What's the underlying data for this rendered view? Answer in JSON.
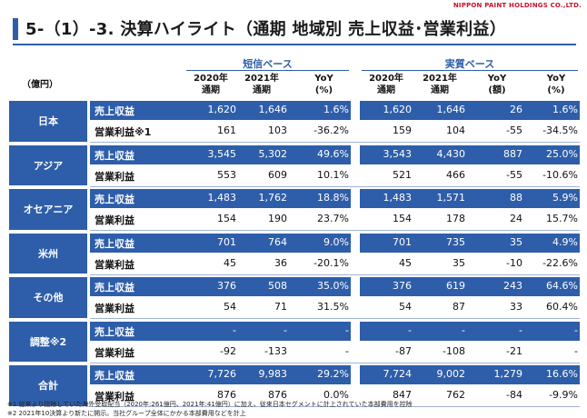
{
  "header": {
    "brand": "NIPPON PAINT HOLDINGS CO.,LTD.",
    "title": "5-（1）-3. 決算ハイライト（通期 地域別 売上収益･営業利益）"
  },
  "table": {
    "unit": "（億円）",
    "sections": [
      {
        "label": "短信ベース"
      },
      {
        "label": "実質ベース"
      }
    ],
    "columns": [
      {
        "l1": "2020年",
        "l2": "通期"
      },
      {
        "l1": "2021年",
        "l2": "通期"
      },
      {
        "l1": "YoY",
        "l2": "(%)"
      },
      {
        "l1": "2020年",
        "l2": "通期"
      },
      {
        "l1": "2021年",
        "l2": "通期"
      },
      {
        "l1": "YoY",
        "l2": "(額)"
      },
      {
        "l1": "YoY",
        "l2": "(%)"
      }
    ],
    "regions": [
      {
        "name": "日本",
        "rows": [
          {
            "label": "売上収益",
            "values": [
              "1,620",
              "1,646",
              "1.6%",
              "1,620",
              "1,646",
              "26",
              "1.6%"
            ]
          },
          {
            "label": "営業利益※1",
            "values": [
              "161",
              "103",
              "-36.2%",
              "159",
              "104",
              "-55",
              "-34.5%"
            ]
          }
        ]
      },
      {
        "name": "アジア",
        "rows": [
          {
            "label": "売上収益",
            "values": [
              "3,545",
              "5,302",
              "49.6%",
              "3,543",
              "4,430",
              "887",
              "25.0%"
            ]
          },
          {
            "label": "営業利益",
            "values": [
              "553",
              "609",
              "10.1%",
              "521",
              "466",
              "-55",
              "-10.6%"
            ]
          }
        ]
      },
      {
        "name": "オセアニア",
        "rows": [
          {
            "label": "売上収益",
            "values": [
              "1,483",
              "1,762",
              "18.8%",
              "1,483",
              "1,571",
              "88",
              "5.9%"
            ]
          },
          {
            "label": "営業利益",
            "values": [
              "154",
              "190",
              "23.7%",
              "154",
              "178",
              "24",
              "15.7%"
            ]
          }
        ]
      },
      {
        "name": "米州",
        "rows": [
          {
            "label": "売上収益",
            "values": [
              "701",
              "764",
              "9.0%",
              "701",
              "735",
              "35",
              "4.9%"
            ]
          },
          {
            "label": "営業利益",
            "values": [
              "45",
              "36",
              "-20.1%",
              "45",
              "35",
              "-10",
              "-22.6%"
            ]
          }
        ]
      },
      {
        "name": "その他",
        "rows": [
          {
            "label": "売上収益",
            "values": [
              "376",
              "508",
              "35.0%",
              "376",
              "619",
              "243",
              "64.6%"
            ]
          },
          {
            "label": "営業利益",
            "values": [
              "54",
              "71",
              "31.5%",
              "54",
              "87",
              "33",
              "60.4%"
            ]
          }
        ]
      },
      {
        "name": "調整※2",
        "rows": [
          {
            "label": "売上収益",
            "values": [
              "-",
              "-",
              "-",
              "-",
              "-",
              "-",
              "-"
            ]
          },
          {
            "label": "営業利益",
            "values": [
              "-92",
              "-133",
              "-",
              "-87",
              "-108",
              "-21",
              "-"
            ]
          }
        ]
      },
      {
        "name": "合計",
        "rows": [
          {
            "label": "売上収益",
            "values": [
              "7,726",
              "9,983",
              "29.2%",
              "7,724",
              "9,002",
              "1,279",
              "16.6%"
            ]
          },
          {
            "label": "営業利益",
            "values": [
              "876",
              "876",
              "0.0%",
              "847",
              "762",
              "-84",
              "-9.9%"
            ]
          }
        ]
      }
    ]
  },
  "notes": [
    "※1 従来より控除していた海外受取配当（2020年:261億円、2021年:41億円）に加え、従来日本セグメントに計上されていた本部費用を控除",
    "※2 2021年10決算より新たに開示。当社グループ全体にかかる本部費用などを計上"
  ],
  "colors": {
    "accent": "#2e5eaa",
    "brand": "#c8102e"
  }
}
